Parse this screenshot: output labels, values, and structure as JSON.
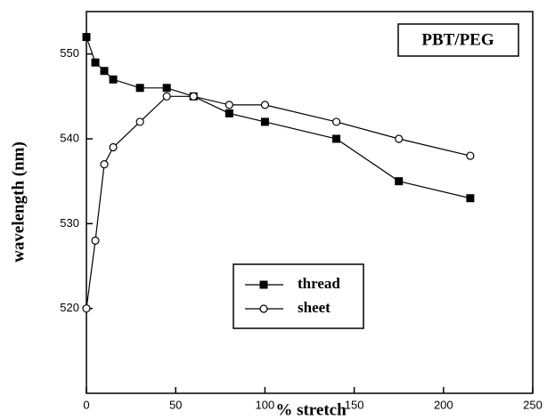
{
  "chart_data": {
    "type": "line",
    "annotation": "PBT/PEG",
    "xlabel": "% stretch",
    "ylabel": "wavelength (nm)",
    "x": [
      0,
      5,
      10,
      15,
      30,
      45,
      60,
      80,
      100,
      140,
      175,
      215
    ],
    "series": [
      {
        "name": "thread",
        "color": "#000000",
        "marker": "filled-square",
        "values": [
          552,
          549,
          548,
          547,
          546,
          546,
          545,
          543,
          542,
          540,
          535,
          533
        ]
      },
      {
        "name": "sheet",
        "color": "#000000",
        "marker": "open-circle",
        "values": [
          520,
          528,
          537,
          539,
          542,
          545,
          545,
          544,
          544,
          542,
          540,
          538
        ]
      }
    ],
    "xlim": [
      0,
      250
    ],
    "xticks": [
      0,
      50,
      100,
      150,
      200,
      250
    ],
    "ylim": [
      510,
      555
    ],
    "yticks": [
      520,
      530,
      540,
      550
    ],
    "grid": false,
    "legend": "lower center"
  }
}
